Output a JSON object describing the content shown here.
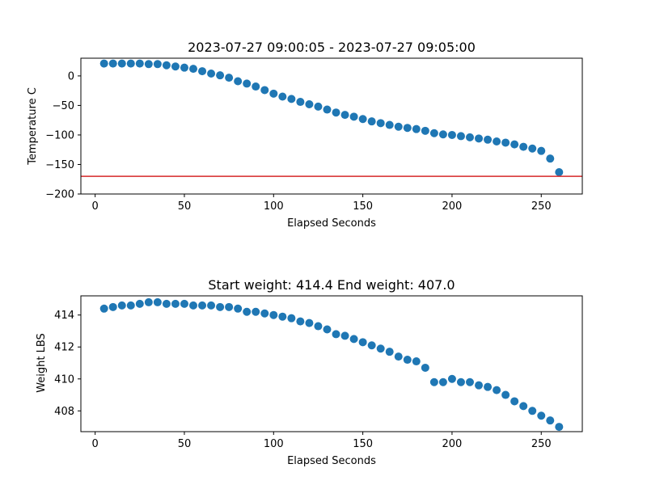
{
  "chart_data": [
    {
      "type": "scatter",
      "title": "2023-07-27 09:00:05 - 2023-07-27 09:05:00",
      "xlabel": "Elapsed Seconds",
      "ylabel": "Temperature C",
      "xlim": [
        -8,
        273
      ],
      "ylim": [
        -200,
        30
      ],
      "xticks": [
        0,
        50,
        100,
        150,
        200,
        250
      ],
      "yticks": [
        -200,
        -150,
        -100,
        -50,
        0
      ],
      "ytick_labels": [
        "−200",
        "−150",
        "−100",
        "−50",
        "0"
      ],
      "marker_color": "#1f77b4",
      "reference_line": {
        "y": -170,
        "color": "#d62728"
      },
      "grid": false,
      "x": [
        5,
        10,
        15,
        20,
        25,
        30,
        35,
        40,
        45,
        50,
        55,
        60,
        65,
        70,
        75,
        80,
        85,
        90,
        95,
        100,
        105,
        110,
        115,
        120,
        125,
        130,
        135,
        140,
        145,
        150,
        155,
        160,
        165,
        170,
        175,
        180,
        185,
        190,
        195,
        200,
        205,
        210,
        215,
        220,
        225,
        230,
        235,
        240,
        245,
        250,
        255,
        260
      ],
      "y": [
        21,
        21,
        21,
        21,
        21,
        20,
        20,
        18,
        16,
        14,
        12,
        8,
        4,
        1,
        -3,
        -9,
        -13,
        -18,
        -24,
        -30,
        -35,
        -39,
        -44,
        -48,
        -52,
        -57,
        -62,
        -66,
        -69,
        -73,
        -77,
        -80,
        -83,
        -86,
        -88,
        -90,
        -93,
        -97,
        -99,
        -100,
        -102,
        -104,
        -106,
        -108,
        -111,
        -113,
        -116,
        -120,
        -123,
        -127,
        -140,
        -163
      ]
    },
    {
      "type": "scatter",
      "title": "Start weight: 414.4 End weight: 407.0",
      "xlabel": "Elapsed Seconds",
      "ylabel": "Weight LBS",
      "xlim": [
        -8,
        273
      ],
      "ylim": [
        406.7,
        415.2
      ],
      "xticks": [
        0,
        50,
        100,
        150,
        200,
        250
      ],
      "yticks": [
        408,
        410,
        412,
        414
      ],
      "ytick_labels": [
        "408",
        "410",
        "412",
        "414"
      ],
      "marker_color": "#1f77b4",
      "grid": false,
      "x": [
        5,
        10,
        15,
        20,
        25,
        30,
        35,
        40,
        45,
        50,
        55,
        60,
        65,
        70,
        75,
        80,
        85,
        90,
        95,
        100,
        105,
        110,
        115,
        120,
        125,
        130,
        135,
        140,
        145,
        150,
        155,
        160,
        165,
        170,
        175,
        180,
        185,
        190,
        195,
        200,
        205,
        210,
        215,
        220,
        225,
        230,
        235,
        240,
        245,
        250,
        255,
        260
      ],
      "y": [
        414.4,
        414.5,
        414.6,
        414.6,
        414.7,
        414.8,
        414.8,
        414.7,
        414.7,
        414.7,
        414.6,
        414.6,
        414.6,
        414.5,
        414.5,
        414.4,
        414.2,
        414.2,
        414.1,
        414.0,
        413.9,
        413.8,
        413.6,
        413.5,
        413.3,
        413.1,
        412.8,
        412.7,
        412.5,
        412.3,
        412.1,
        411.9,
        411.7,
        411.4,
        411.2,
        411.1,
        410.7,
        409.8,
        409.8,
        410.0,
        409.8,
        409.8,
        409.6,
        409.5,
        409.3,
        409.0,
        408.6,
        408.3,
        408.0,
        407.7,
        407.4,
        407.0
      ]
    }
  ]
}
